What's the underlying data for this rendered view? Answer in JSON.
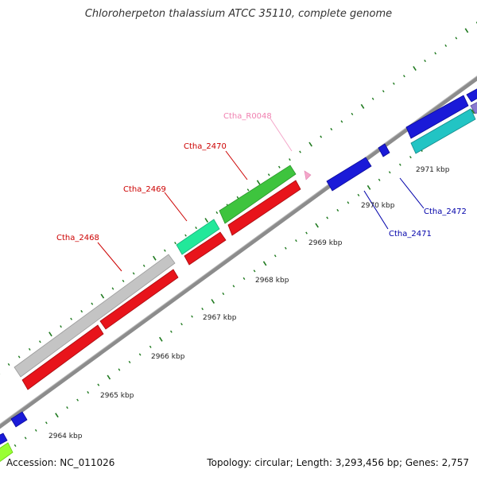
{
  "title": "Chloroherpeton thalassium ATCC 35110, complete genome",
  "footer": {
    "accession": "Accession: NC_011026",
    "summary": "Topology: circular; Length: 3,293,456 bp; Genes: 2,757"
  },
  "colors": {
    "backbone": "#8c8c8c",
    "tick": "#1f7a1f",
    "red": "#e8141b",
    "green": "#3ec43e",
    "mint": "#22e89a",
    "gray": "#c4c4c4",
    "blue": "#1a1ad8",
    "cyan": "#22c4c4",
    "lime": "#99ff33",
    "pink": "#f4a6c9",
    "purple": "#8a7ad0"
  },
  "gene_labels": [
    {
      "text": "Ctha_R0048",
      "color": "#f080b0"
    },
    {
      "text": "Ctha_2470",
      "color": "#cc0000"
    },
    {
      "text": "Ctha_2469",
      "color": "#cc0000"
    },
    {
      "text": "Ctha_2468",
      "color": "#cc0000"
    },
    {
      "text": "Ctha_2472",
      "color": "#0000aa"
    },
    {
      "text": "Ctha_2471",
      "color": "#0000aa"
    }
  ],
  "kbp_labels": [
    "2964 kbp",
    "2965 kbp",
    "2966 kbp",
    "2967 kbp",
    "2968 kbp",
    "2969 kbp",
    "2970 kbp",
    "2971 kbp"
  ]
}
